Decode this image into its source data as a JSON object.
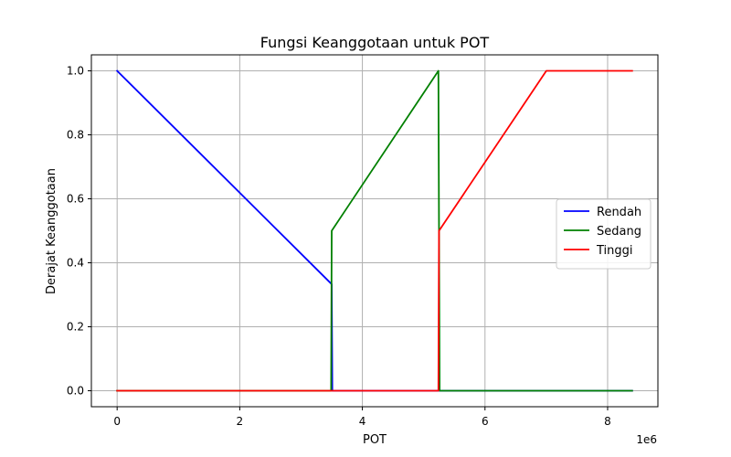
{
  "chart_data": {
    "type": "line",
    "title": "Fungsi Keanggotaan untuk POT",
    "xlabel": "POT",
    "ylabel": "Derajat Keanggotaan",
    "x_offset_label": "1e6",
    "xlim": [
      -0.42,
      8.82
    ],
    "ylim": [
      -0.05,
      1.05
    ],
    "x_ticks": [
      0,
      2,
      4,
      6,
      8
    ],
    "x_tick_labels": [
      "0",
      "2",
      "4",
      "6",
      "8"
    ],
    "y_ticks": [
      0.0,
      0.2,
      0.4,
      0.6,
      0.8,
      1.0
    ],
    "y_tick_labels": [
      "0.0",
      "0.2",
      "0.4",
      "0.6",
      "0.8",
      "1.0"
    ],
    "grid": true,
    "legend_position": "center-right",
    "series": [
      {
        "name": "Rendah",
        "color": "#0000ff",
        "x": [
          0,
          3.5,
          3.51,
          5.25,
          8.4
        ],
        "y": [
          1.0,
          0.333,
          0.0,
          0.0,
          0.0
        ]
      },
      {
        "name": "Sedang",
        "color": "#008000",
        "x": [
          0,
          3.49,
          3.5,
          5.24,
          5.26,
          8.4
        ],
        "y": [
          0.0,
          0.0,
          0.5,
          1.0,
          0.0,
          0.0
        ]
      },
      {
        "name": "Tinggi",
        "color": "#ff0000",
        "x": [
          0,
          5.24,
          5.25,
          7.0,
          8.4
        ],
        "y": [
          0.0,
          0.0,
          0.5,
          1.0,
          1.0
        ]
      }
    ]
  }
}
